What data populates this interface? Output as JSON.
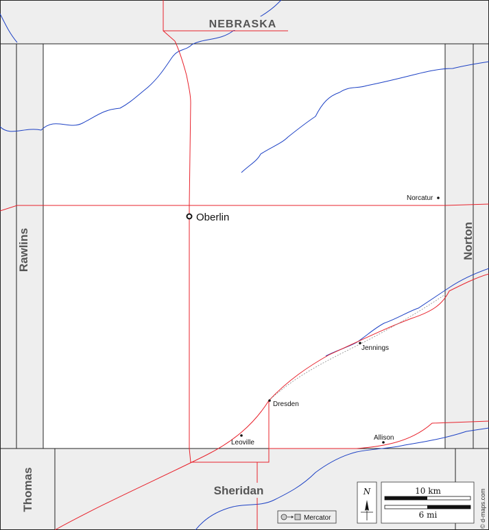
{
  "map": {
    "state_label": "NEBRASKA",
    "counties": {
      "west": "Rawlins",
      "east": "Norton",
      "south": "Sheridan",
      "southwest": "Thomas"
    },
    "county_seat": "Oberlin",
    "towns": {
      "norcatur": "Norcatur",
      "jennings": "Jennings",
      "dresden": "Dresden",
      "leoville": "Leoville",
      "allison": "Allison"
    },
    "legend": {
      "north_symbol": "N",
      "scale_km": "10 km",
      "scale_mi": "6 mi",
      "projection": "Mercator"
    },
    "credit": "© d-maps.com",
    "colors": {
      "outside_fill": "#eeeeee",
      "county_fill": "#ffffff",
      "river": "#1a3fc4",
      "road": "#e8202a",
      "border": "#222222"
    }
  }
}
